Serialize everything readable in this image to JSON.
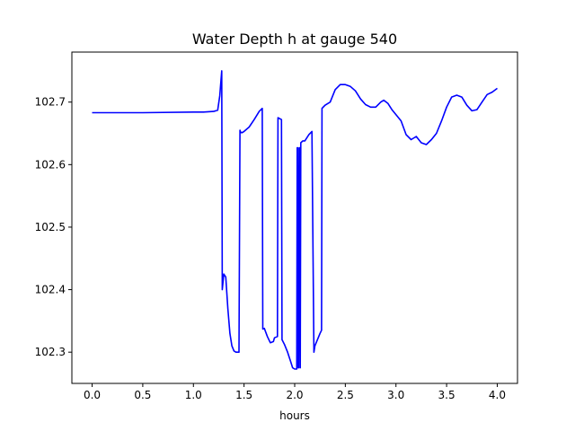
{
  "chart_data": {
    "type": "line",
    "title": "Water Depth h at gauge 540",
    "xlabel": "hours",
    "ylabel": "",
    "xlim": [
      -0.2,
      4.2
    ],
    "ylim": [
      102.25,
      102.78
    ],
    "xticks": [
      0.0,
      0.5,
      1.0,
      1.5,
      2.0,
      2.5,
      3.0,
      3.5,
      4.0
    ],
    "xtick_labels": [
      "0.0",
      "0.5",
      "1.0",
      "1.5",
      "2.0",
      "2.5",
      "3.0",
      "3.5",
      "4.0"
    ],
    "yticks": [
      102.3,
      102.4,
      102.5,
      102.6,
      102.7
    ],
    "ytick_labels": [
      "102.3",
      "102.4",
      "102.5",
      "102.6",
      "102.7"
    ],
    "grid": false,
    "series": [
      {
        "color": "#0000ff",
        "x": [
          0.0,
          0.5,
          1.0,
          1.1,
          1.2,
          1.24,
          1.26,
          1.28,
          1.285,
          1.3,
          1.32,
          1.34,
          1.36,
          1.38,
          1.4,
          1.42,
          1.45,
          1.46,
          1.465,
          1.48,
          1.5,
          1.55,
          1.6,
          1.65,
          1.68,
          1.685,
          1.7,
          1.73,
          1.76,
          1.79,
          1.8,
          1.83,
          1.835,
          1.87,
          1.875,
          1.9,
          1.93,
          1.96,
          1.98,
          2.0,
          2.02,
          2.025,
          2.03,
          2.035,
          2.04,
          2.045,
          2.05,
          2.055,
          2.06,
          2.08,
          2.1,
          2.14,
          2.17,
          2.19,
          2.2,
          2.25,
          2.265,
          2.27,
          2.3,
          2.35,
          2.4,
          2.45,
          2.5,
          2.55,
          2.6,
          2.65,
          2.7,
          2.75,
          2.8,
          2.85,
          2.88,
          2.92,
          2.96,
          3.0,
          3.05,
          3.1,
          3.15,
          3.2,
          3.25,
          3.3,
          3.35,
          3.4,
          3.45,
          3.5,
          3.55,
          3.6,
          3.65,
          3.7,
          3.75,
          3.8,
          3.85,
          3.9,
          3.95,
          4.0
        ],
        "y": [
          102.683,
          102.683,
          102.684,
          102.684,
          102.685,
          102.687,
          102.71,
          102.75,
          102.4,
          102.425,
          102.42,
          102.37,
          102.33,
          102.31,
          102.302,
          102.3,
          102.3,
          102.655,
          102.652,
          102.651,
          102.653,
          102.66,
          102.672,
          102.685,
          102.69,
          102.337,
          102.338,
          102.325,
          102.315,
          102.317,
          102.323,
          102.325,
          102.675,
          102.672,
          102.32,
          102.312,
          102.3,
          102.285,
          102.275,
          102.273,
          102.273,
          102.627,
          102.627,
          102.275,
          102.275,
          102.627,
          102.627,
          102.275,
          102.635,
          102.638,
          102.638,
          102.648,
          102.653,
          102.3,
          102.31,
          102.33,
          102.335,
          102.69,
          102.695,
          102.7,
          102.72,
          102.728,
          102.728,
          102.725,
          102.718,
          102.705,
          102.696,
          102.692,
          102.692,
          102.7,
          102.703,
          102.698,
          102.688,
          102.68,
          102.67,
          102.648,
          102.64,
          102.645,
          102.635,
          102.632,
          102.64,
          102.65,
          102.67,
          102.692,
          102.708,
          102.711,
          102.708,
          102.695,
          102.686,
          102.688,
          102.7,
          102.712,
          102.716,
          102.722
        ]
      }
    ]
  }
}
